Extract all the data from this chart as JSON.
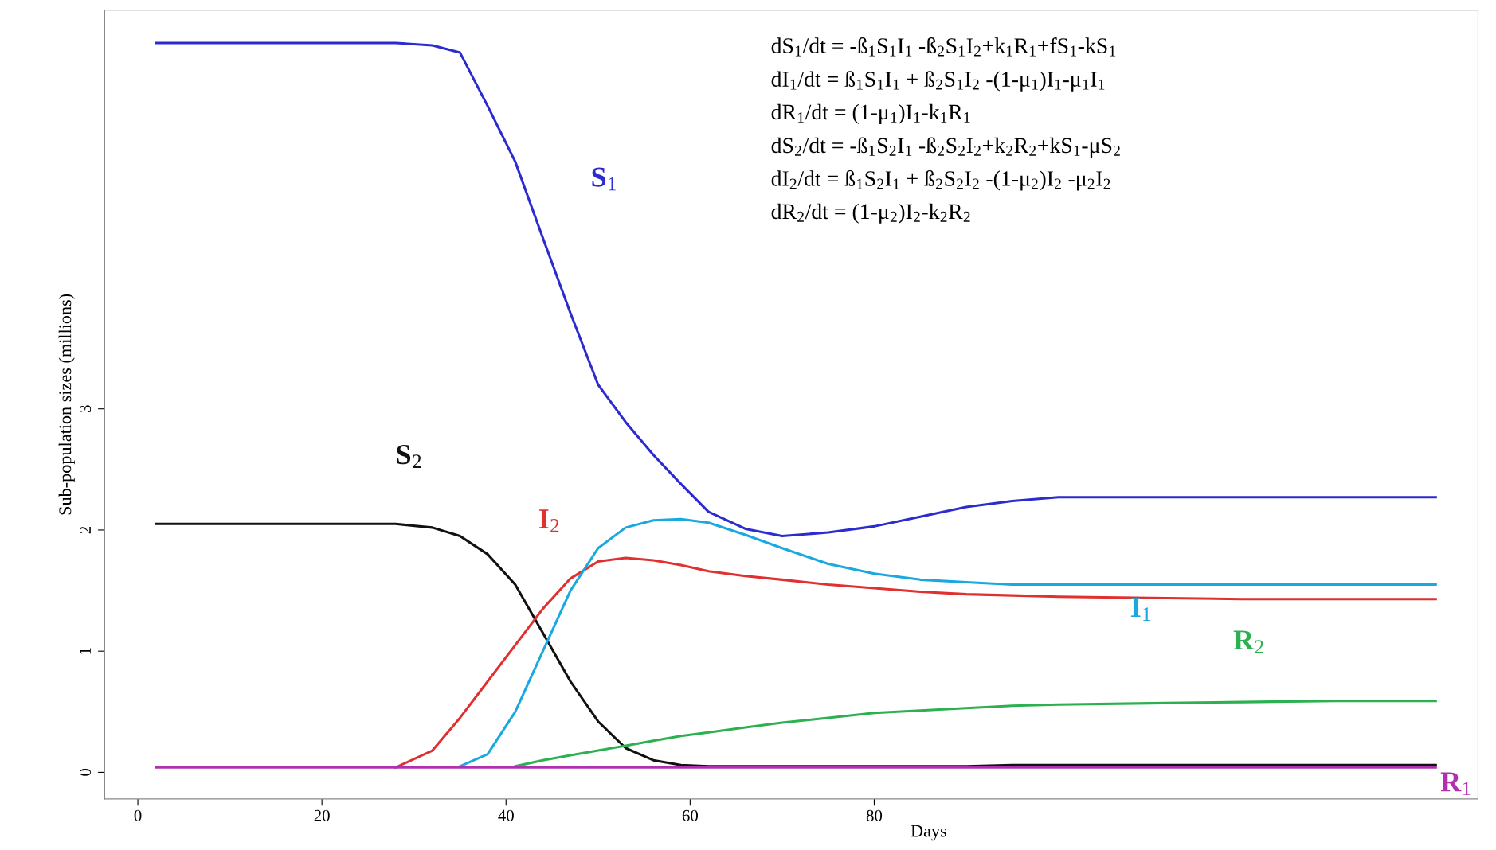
{
  "chart_data": {
    "type": "line",
    "xlabel": "Days",
    "ylabel": "Sub-population sizes (millions)",
    "x": [
      2,
      10,
      20,
      28,
      32,
      35,
      38,
      41,
      44,
      47,
      50,
      53,
      56,
      59,
      62,
      66,
      70,
      75,
      80,
      85,
      90,
      95,
      100,
      110,
      120,
      130,
      141
    ],
    "series": [
      {
        "name": "S$_{1}$",
        "color": "#2b2bd0",
        "values": [
          6.02,
          6.02,
          6.02,
          6.02,
          6.0,
          5.94,
          5.5,
          5.04,
          4.41,
          3.79,
          3.2,
          2.89,
          2.62,
          2.38,
          2.15,
          2.01,
          1.95,
          1.98,
          2.03,
          2.11,
          2.19,
          2.24,
          2.27,
          2.27,
          2.27,
          2.27,
          2.27
        ]
      },
      {
        "name": "S$_{2}$",
        "color": "#111111",
        "values": [
          2.05,
          2.05,
          2.05,
          2.05,
          2.02,
          1.95,
          1.8,
          1.55,
          1.15,
          0.75,
          0.42,
          0.2,
          0.1,
          0.06,
          0.05,
          0.05,
          0.05,
          0.05,
          0.05,
          0.05,
          0.05,
          0.06,
          0.06,
          0.06,
          0.06,
          0.06,
          0.06
        ]
      },
      {
        "name": "I$_{2}$",
        "color": "#e03030",
        "values": [
          null,
          null,
          null,
          0.04,
          0.18,
          0.45,
          0.75,
          1.05,
          1.35,
          1.6,
          1.74,
          1.77,
          1.75,
          1.71,
          1.66,
          1.62,
          1.59,
          1.55,
          1.52,
          1.49,
          1.47,
          1.46,
          1.45,
          1.44,
          1.43,
          1.43,
          1.43
        ]
      },
      {
        "name": "I$_{1}$",
        "color": "#1aa8e0",
        "values": [
          null,
          null,
          null,
          null,
          null,
          0.05,
          0.15,
          0.5,
          1.0,
          1.5,
          1.85,
          2.02,
          2.08,
          2.09,
          2.06,
          1.96,
          1.85,
          1.72,
          1.64,
          1.59,
          1.57,
          1.55,
          1.55,
          1.55,
          1.55,
          1.55,
          1.55
        ]
      },
      {
        "name": "R$_{2}$",
        "color": "#2cb050",
        "values": [
          null,
          null,
          null,
          null,
          null,
          null,
          null,
          0.05,
          0.1,
          0.14,
          0.18,
          0.22,
          0.26,
          0.3,
          0.33,
          0.37,
          0.41,
          0.45,
          0.49,
          0.51,
          0.53,
          0.55,
          0.56,
          0.57,
          0.58,
          0.59,
          0.59
        ]
      },
      {
        "name": "R$_{1}$",
        "color": "#b030b0",
        "values": [
          0.04,
          0.04,
          0.04,
          0.04,
          0.04,
          0.04,
          0.04,
          0.04,
          0.04,
          0.04,
          0.04,
          0.04,
          0.04,
          0.04,
          0.04,
          0.04,
          0.04,
          0.04,
          0.04,
          0.04,
          0.04,
          0.04,
          0.04,
          0.04,
          0.04,
          0.04,
          0.04
        ]
      }
    ],
    "xlim": [
      -3.6,
      145.6
    ],
    "xticks": [
      0,
      20,
      40,
      60,
      80
    ],
    "ylim": [
      -0.22,
      6.29
    ],
    "yticks": [
      0,
      1,
      2,
      3
    ],
    "grid": false,
    "legend": false,
    "marker": "none",
    "line_style": "solid",
    "annotations": [
      "dS$_{1}$/dt = -ß$_{1}$S$_{1}$I$_{1}$ -ß$_{2}$S$_{1}$I$_{2}$+k$_{1}$R$_{1}$+fS$_{1}$-kS$_{1}$",
      "dI$_{1}$/dt = ß$_{1}$S$_{1}$I$_{1}$ + ß$_{2}$S$_{1}$I$_{2}$ -(1-μ$_{1}$)I$_{1}$-μ$_{1}$I$_{1}$",
      "dR$_{1}$/dt = (1-μ$_{1}$)I$_{1}$-k$_{1}$R$_{1}$",
      "dS$_{2}$/dt = -ß$_{1}$S$_{2}$I$_{1}$ -ß$_{2}$S$_{2}$I$_{2}$+k$_{2}$R$_{2}$+kS$_{1}$-μS$_{2}$",
      "dI$_{2}$/dt = ß$_{1}$S$_{2}$I$_{1}$ + ß$_{2}$S$_{2}$I$_{2}$ -(1-μ$_{2}$)I$_{2}$ -μ$_{2}$I$_{2}$",
      "dR$_{2}$/dt = (1-μ$_{2}$)I$_{2}$-k$_{2}$R$_{2}$"
    ]
  }
}
